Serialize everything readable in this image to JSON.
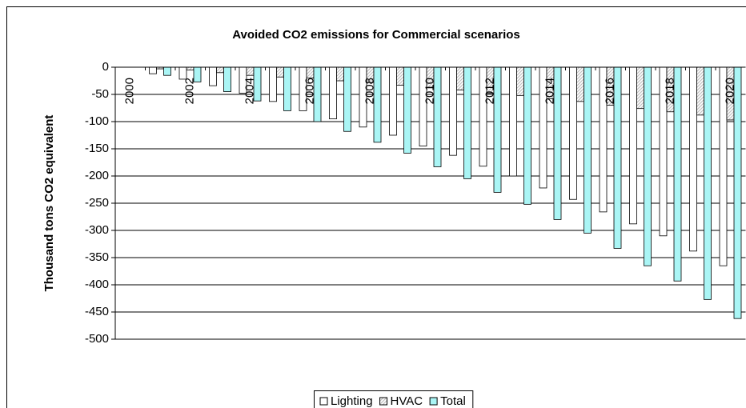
{
  "chart_data": {
    "type": "bar",
    "title": "Avoided CO2 emissions for Commercial scenarios",
    "y_label": "Thousand tons CO2 equivalent",
    "categories": [
      "2000",
      null,
      "2002",
      null,
      "2004",
      null,
      "2006",
      null,
      "2008",
      null,
      "2010",
      null,
      "2012",
      null,
      "2014",
      null,
      "2016",
      null,
      "2018",
      null,
      "2020"
    ],
    "series": [
      {
        "name": "Lighting",
        "color": "#ffffff",
        "values": [
          0,
          -12,
          -22,
          -34,
          -48,
          -63,
          -80,
          -95,
          -110,
          -125,
          -145,
          -162,
          -182,
          -200,
          -222,
          -243,
          -266,
          -288,
          -310,
          -338,
          -365
        ]
      },
      {
        "name": "HVAC",
        "color": "#c0c0c0",
        "pattern": "hatch",
        "values": [
          0,
          -3,
          -5,
          -10,
          -15,
          -18,
          -20,
          -25,
          -28,
          -33,
          -38,
          -42,
          -48,
          -52,
          -58,
          -63,
          -70,
          -76,
          -82,
          -88,
          -97
        ]
      },
      {
        "name": "Total",
        "color": "#aaf5f5",
        "values": [
          0,
          -15,
          -27,
          -45,
          -62,
          -80,
          -100,
          -118,
          -138,
          -158,
          -183,
          -205,
          -230,
          -252,
          -280,
          -305,
          -333,
          -365,
          -393,
          -427,
          -462
        ]
      }
    ],
    "ylim": [
      -500,
      0
    ],
    "yticks": [
      0,
      -50,
      -100,
      -150,
      -200,
      -250,
      -300,
      -350,
      -400,
      -450,
      -500
    ],
    "grid": true,
    "legend": "bottom"
  }
}
